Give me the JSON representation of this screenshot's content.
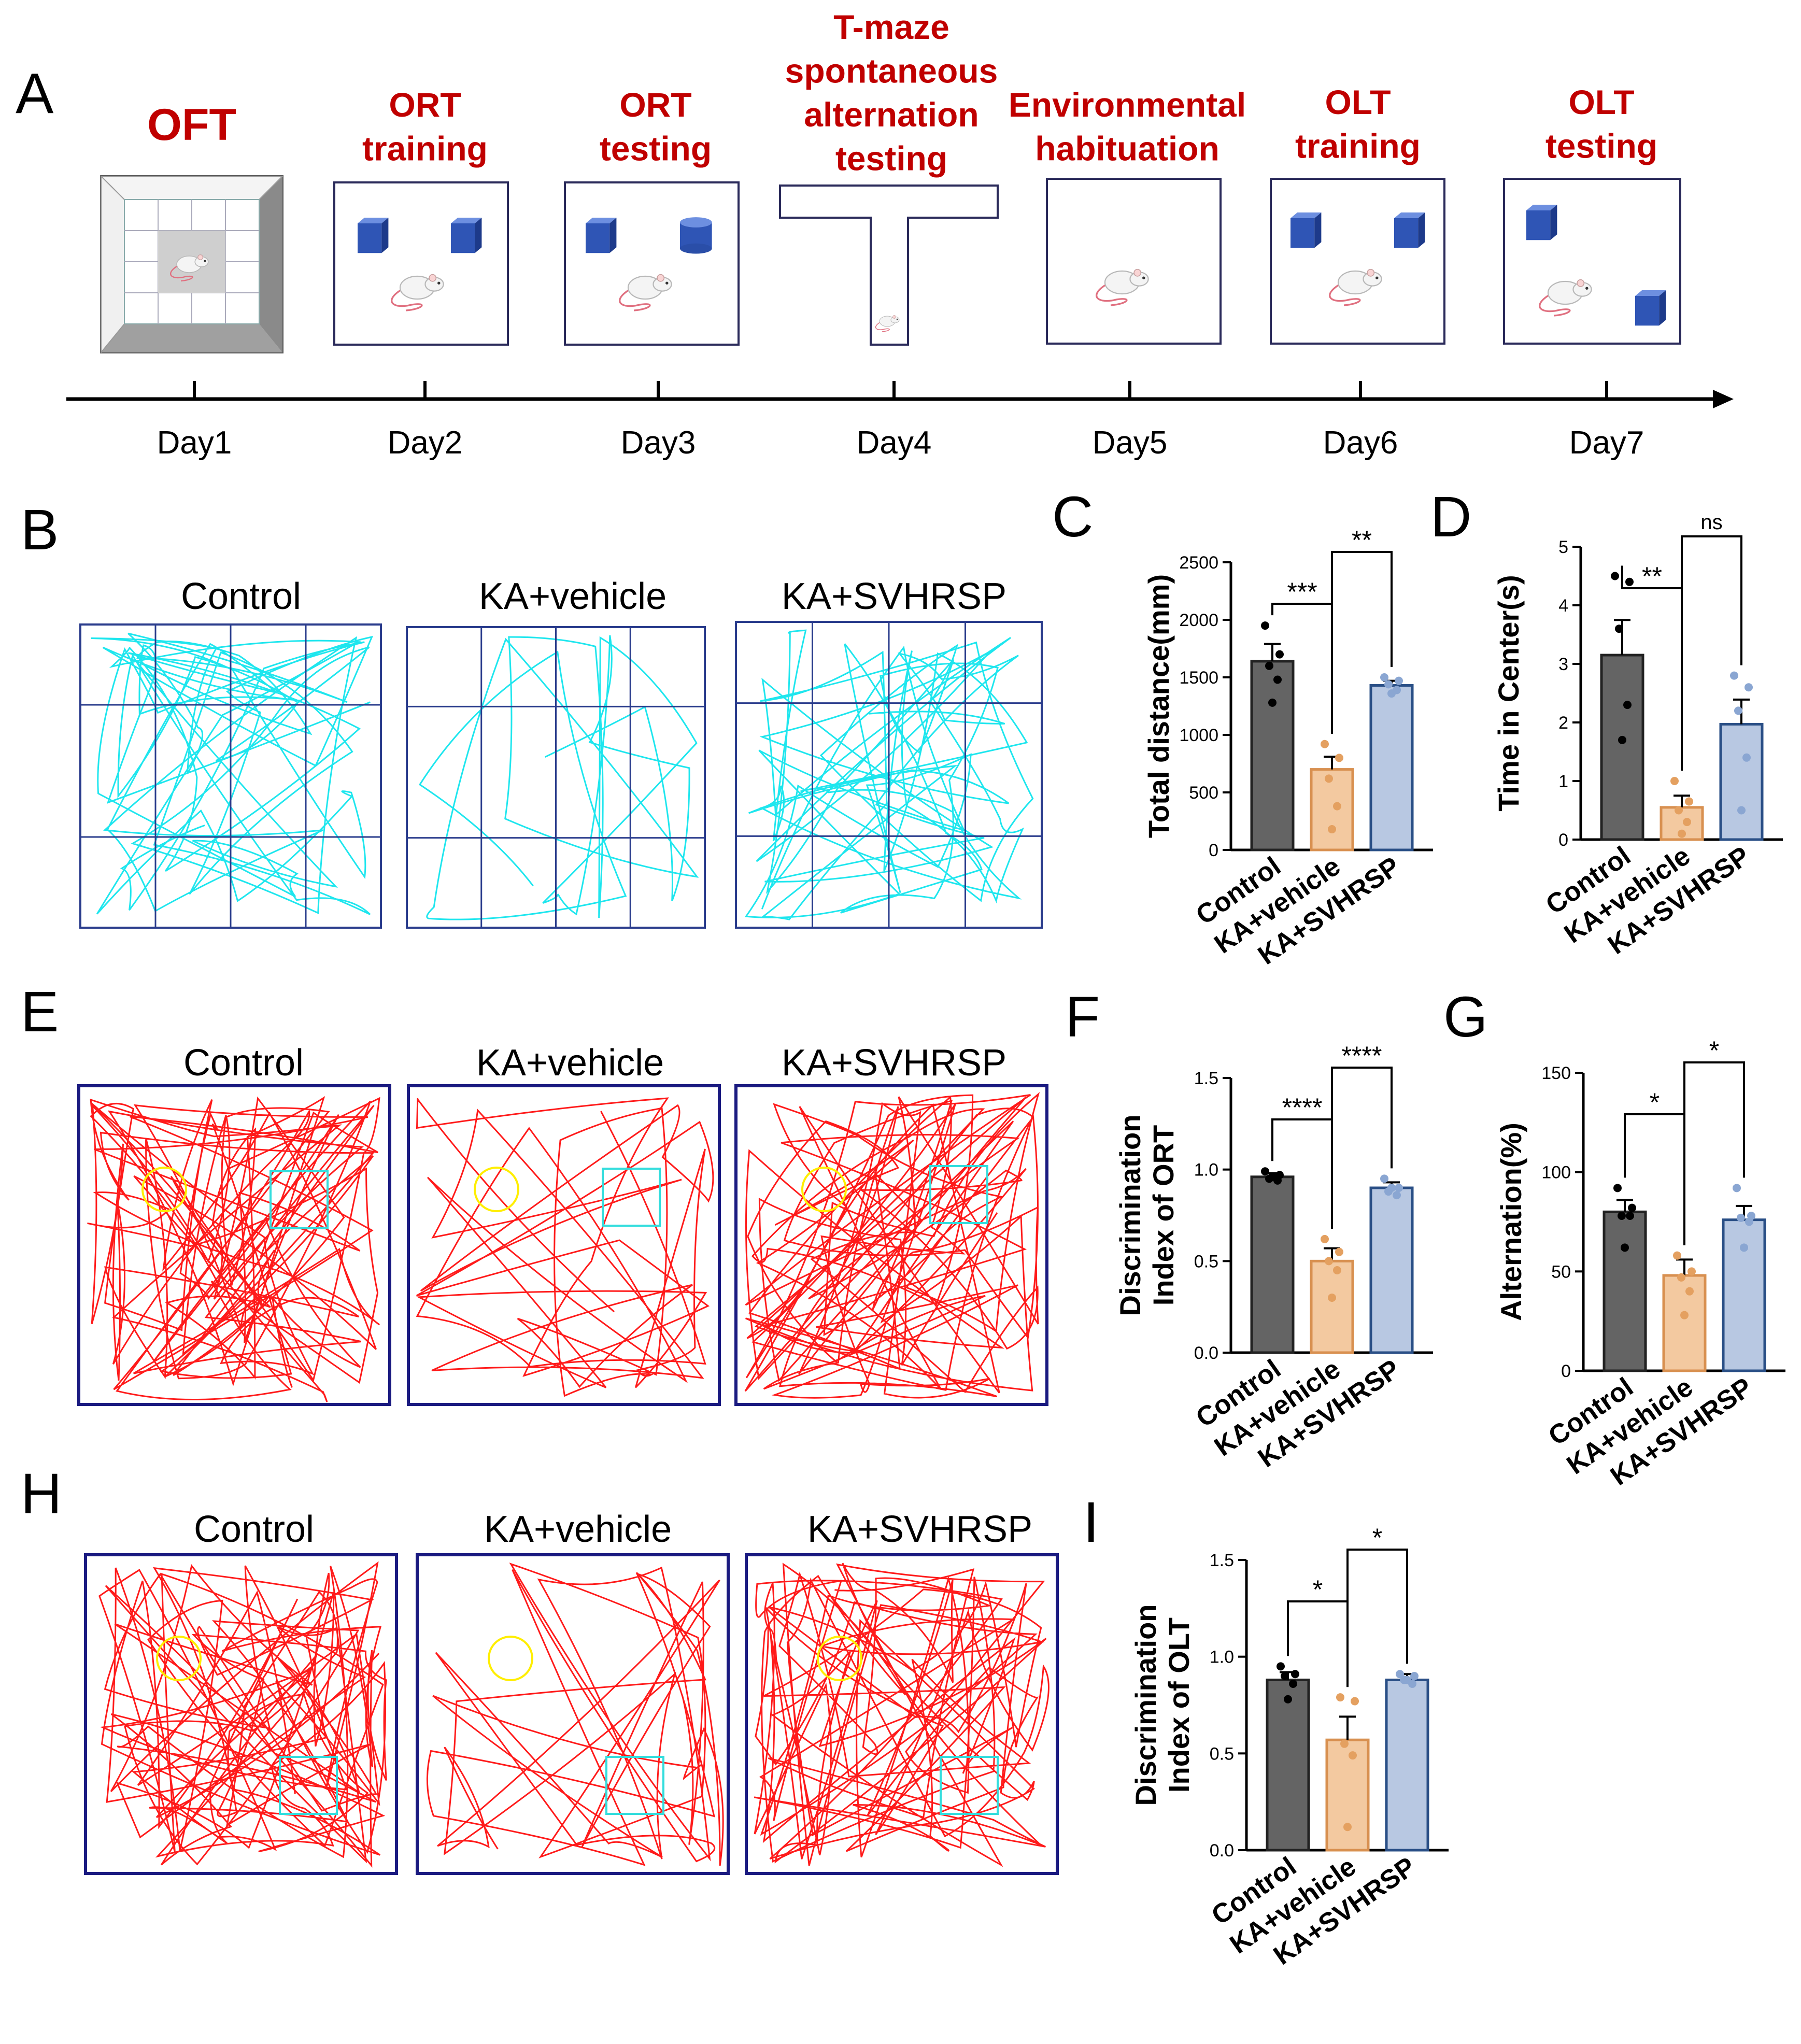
{
  "colors": {
    "red_title": "#c00000",
    "cyan_track": "#1ee6ee",
    "red_track": "#ff1a1a",
    "arena_border_dark": "#1a1a80",
    "arena_border": "#2a3c8c",
    "control": "#646464",
    "ka_vehicle": "#f3c9a0",
    "ka_vehicle_dot": "#e4a060",
    "ka_svhrsp": "#b8c8e2",
    "ka_svhrsp_dot": "#8aa6d2",
    "ka_svhrsp_edge": "#2a4f86",
    "cube": "#2f55b5"
  },
  "panelA": {
    "letter": "A",
    "steps": [
      {
        "title": "OFT",
        "day": "Day1"
      },
      {
        "title": "ORT training",
        "day": "Day2"
      },
      {
        "title": "ORT testing",
        "day": "Day3"
      },
      {
        "title": "T-maze spontaneous alternation testing",
        "day": "Day4"
      },
      {
        "title": "Environmental habituation",
        "day": "Day5"
      },
      {
        "title": "OLT training",
        "day": "Day6"
      },
      {
        "title": "OLT testing",
        "day": "Day7"
      }
    ]
  },
  "panelB": {
    "letter": "B",
    "labels": [
      "Control",
      "KA+vehicle",
      "KA+SVHRSP"
    ]
  },
  "panelE": {
    "letter": "E",
    "labels": [
      "Control",
      "KA+vehicle",
      "KA+SVHRSP"
    ]
  },
  "panelH": {
    "letter": "H",
    "labels": [
      "Control",
      "KA+vehicle",
      "KA+SVHRSP"
    ]
  },
  "chart_data": [
    {
      "panel": "C",
      "type": "bar",
      "categories": [
        "Control",
        "KA+vehicle",
        "KA+SVHRSP"
      ],
      "values": [
        1640,
        700,
        1430
      ],
      "sem": [
        150,
        110,
        40
      ],
      "points": [
        [
          1950,
          1700,
          1600,
          1480,
          1280
        ],
        [
          920,
          800,
          620,
          380,
          180
        ],
        [
          1500,
          1470,
          1440,
          1390,
          1360
        ]
      ],
      "ylabel": "Total distance(mm)",
      "ylim": [
        0,
        2500
      ],
      "yticks": [
        0,
        500,
        1000,
        1500,
        2000,
        2500
      ],
      "ytick_labels": [
        "0",
        "500",
        "1000",
        "1500",
        "2000",
        "2500"
      ],
      "sig": [
        {
          "from": 0,
          "to": 1,
          "label": "***"
        },
        {
          "from": 1,
          "to": 2,
          "label": "**"
        }
      ]
    },
    {
      "panel": "D",
      "type": "bar",
      "categories": [
        "Control",
        "KA+vehicle",
        "KA+SVHRSP"
      ],
      "values": [
        3.15,
        0.55,
        1.97
      ],
      "sem": [
        0.6,
        0.2,
        0.42
      ],
      "points": [
        [
          4.5,
          4.4,
          3.6,
          2.3,
          1.7
        ],
        [
          1.0,
          0.65,
          0.5,
          0.3,
          0.1
        ],
        [
          2.8,
          2.6,
          2.2,
          1.4,
          0.5
        ]
      ],
      "ylabel": "Time in Center(s)",
      "ylim": [
        0,
        5
      ],
      "yticks": [
        0,
        1,
        2,
        3,
        4,
        5
      ],
      "ytick_labels": [
        "0",
        "1",
        "2",
        "3",
        "4",
        "5"
      ],
      "sig": [
        {
          "from": 0,
          "to": 1,
          "label": "**"
        },
        {
          "from": 1,
          "to": 2,
          "label": "ns"
        }
      ]
    },
    {
      "panel": "F",
      "type": "bar",
      "categories": [
        "Control",
        "KA+vehicle",
        "KA+SVHRSP"
      ],
      "values": [
        0.96,
        0.5,
        0.9
      ],
      "sem": [
        0.02,
        0.07,
        0.03
      ],
      "points": [
        [
          0.99,
          0.97,
          0.95,
          0.94,
          0.96
        ],
        [
          0.62,
          0.55,
          0.5,
          0.45,
          0.3
        ],
        [
          0.95,
          0.9,
          0.88,
          0.86,
          0.9
        ]
      ],
      "ylabel": [
        "Discrimination",
        "Index of ORT"
      ],
      "ylim": [
        0,
        1.5
      ],
      "yticks": [
        0,
        0.5,
        1.0,
        1.5
      ],
      "ytick_labels": [
        "0.0",
        "0.5",
        "1.0",
        "1.5"
      ],
      "sig": [
        {
          "from": 0,
          "to": 1,
          "label": "****"
        },
        {
          "from": 1,
          "to": 2,
          "label": "****"
        }
      ]
    },
    {
      "panel": "G",
      "type": "bar",
      "categories": [
        "Control",
        "KA+vehicle",
        "KA+SVHRSP"
      ],
      "values": [
        80,
        48,
        76
      ],
      "sem": [
        6,
        8,
        7
      ],
      "points": [
        [
          92,
          82,
          78,
          78,
          62
        ],
        [
          58,
          50,
          47,
          40,
          28
        ],
        [
          92,
          78,
          77,
          75,
          62
        ]
      ],
      "ylabel": "Alternation(%)",
      "ylim": [
        0,
        150
      ],
      "yticks": [
        0,
        50,
        100,
        150
      ],
      "ytick_labels": [
        "0",
        "50",
        "100",
        "150"
      ],
      "sig": [
        {
          "from": 0,
          "to": 1,
          "label": "*"
        },
        {
          "from": 1,
          "to": 2,
          "label": "*"
        }
      ]
    },
    {
      "panel": "I",
      "type": "bar",
      "categories": [
        "Control",
        "KA+vehicle",
        "KA+SVHRSP"
      ],
      "values": [
        0.88,
        0.57,
        0.88
      ],
      "sem": [
        0.04,
        0.12,
        0.03
      ],
      "points": [
        [
          0.95,
          0.91,
          0.9,
          0.86,
          0.78
        ],
        [
          0.79,
          0.77,
          0.55,
          0.49,
          0.12
        ],
        [
          0.91,
          0.9,
          0.88,
          0.86,
          0.88
        ]
      ],
      "ylabel": [
        "Discrimination",
        "Index of OLT"
      ],
      "ylim": [
        0,
        1.5
      ],
      "yticks": [
        0,
        0.5,
        1.0,
        1.5
      ],
      "ytick_labels": [
        "0.0",
        "0.5",
        "1.0",
        "1.5"
      ],
      "sig": [
        {
          "from": 0,
          "to": 1,
          "label": "*"
        },
        {
          "from": 1,
          "to": 2,
          "label": "*"
        }
      ]
    }
  ]
}
